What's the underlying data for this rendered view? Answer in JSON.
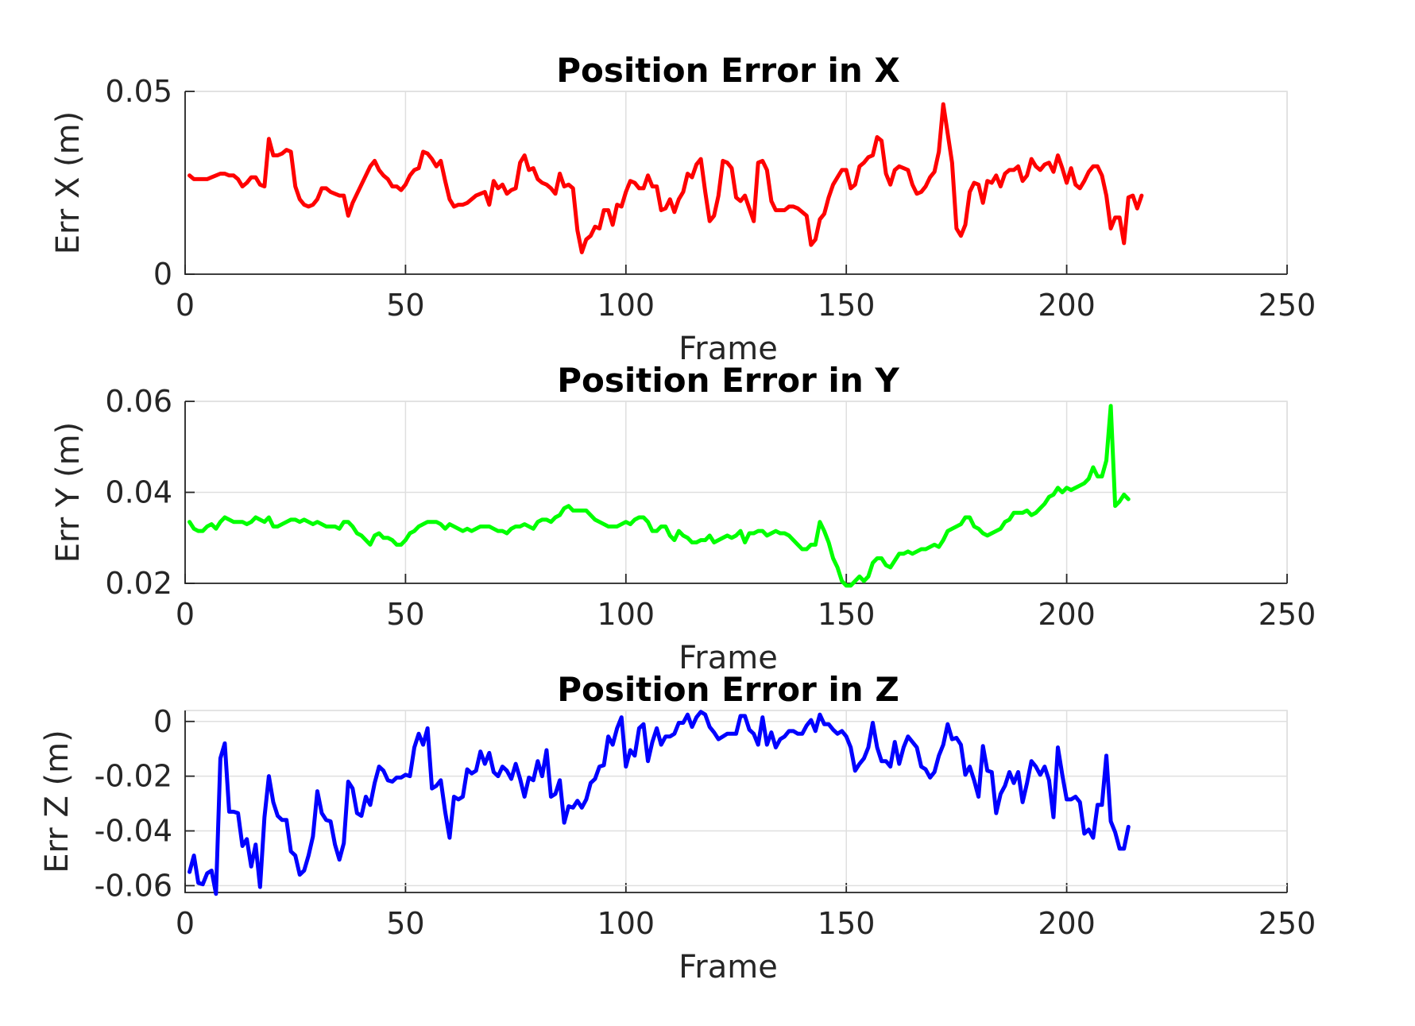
{
  "chart_data": [
    {
      "type": "line",
      "title": "Position Error in X",
      "xlabel": "Frame",
      "ylabel": "Err X (m)",
      "xlim": [
        0,
        250
      ],
      "ylim": [
        0,
        0.05
      ],
      "xticks": [
        "0",
        "50",
        "100",
        "150",
        "200",
        "250"
      ],
      "yticks": [
        "0",
        "0.05"
      ],
      "ytick_values": [
        0,
        0.05
      ],
      "grid": true,
      "color": "#ff0000",
      "series": [
        {
          "values": [
            0.027,
            0.026,
            0.026,
            0.026,
            0.026,
            0.0265,
            0.027,
            0.0275,
            0.0275,
            0.027,
            0.027,
            0.026,
            0.024,
            0.025,
            0.0265,
            0.0265,
            0.0245,
            0.024,
            0.037,
            0.0325,
            0.0325,
            0.033,
            0.034,
            0.0335,
            0.024,
            0.0205,
            0.019,
            0.0185,
            0.019,
            0.0205,
            0.0235,
            0.0235,
            0.0225,
            0.022,
            0.0215,
            0.0215,
            0.016,
            0.0195,
            0.022,
            0.0245,
            0.027,
            0.0295,
            0.031,
            0.0285,
            0.027,
            0.026,
            0.024,
            0.024,
            0.023,
            0.0245,
            0.027,
            0.0285,
            0.029,
            0.0335,
            0.033,
            0.0315,
            0.0295,
            0.031,
            0.0255,
            0.0205,
            0.0185,
            0.019,
            0.019,
            0.0195,
            0.0205,
            0.0215,
            0.022,
            0.0225,
            0.019,
            0.0255,
            0.0235,
            0.0245,
            0.022,
            0.023,
            0.0235,
            0.0305,
            0.0325,
            0.0285,
            0.029,
            0.026,
            0.025,
            0.0245,
            0.0235,
            0.022,
            0.0275,
            0.024,
            0.0245,
            0.0235,
            0.012,
            0.006,
            0.0095,
            0.0105,
            0.013,
            0.0125,
            0.0175,
            0.0175,
            0.0135,
            0.019,
            0.0185,
            0.0225,
            0.0255,
            0.025,
            0.0235,
            0.0235,
            0.027,
            0.024,
            0.024,
            0.0175,
            0.018,
            0.0205,
            0.017,
            0.0205,
            0.0225,
            0.0275,
            0.0265,
            0.03,
            0.0315,
            0.0225,
            0.0145,
            0.016,
            0.0215,
            0.031,
            0.0305,
            0.029,
            0.021,
            0.02,
            0.0215,
            0.018,
            0.0145,
            0.0305,
            0.031,
            0.0285,
            0.02,
            0.0175,
            0.0175,
            0.0175,
            0.0185,
            0.0185,
            0.018,
            0.017,
            0.016,
            0.008,
            0.0095,
            0.015,
            0.0165,
            0.021,
            0.0245,
            0.0265,
            0.0285,
            0.0285,
            0.0235,
            0.0245,
            0.0295,
            0.0305,
            0.032,
            0.0325,
            0.0375,
            0.0365,
            0.0275,
            0.0245,
            0.0285,
            0.0295,
            0.029,
            0.0285,
            0.0245,
            0.022,
            0.0225,
            0.024,
            0.0265,
            0.028,
            0.0335,
            0.0465,
            0.0385,
            0.0305,
            0.0125,
            0.0105,
            0.0135,
            0.0225,
            0.025,
            0.0245,
            0.0195,
            0.0255,
            0.025,
            0.027,
            0.024,
            0.0275,
            0.0285,
            0.0285,
            0.0295,
            0.0255,
            0.027,
            0.0315,
            0.0295,
            0.0285,
            0.03,
            0.0305,
            0.028,
            0.0325,
            0.029,
            0.025,
            0.029,
            0.0245,
            0.0235,
            0.0255,
            0.028,
            0.0295,
            0.0295,
            0.027,
            0.0215,
            0.0125,
            0.0155,
            0.0155,
            0.0085,
            0.021,
            0.0215,
            0.018,
            0.0215
          ]
        }
      ]
    },
    {
      "type": "line",
      "title": "Position Error in Y",
      "xlabel": "Frame",
      "ylabel": "Err Y (m)",
      "xlim": [
        0,
        250
      ],
      "ylim": [
        0.02,
        0.06
      ],
      "xticks": [
        "0",
        "50",
        "100",
        "150",
        "200",
        "250"
      ],
      "yticks": [
        "0.02",
        "0.04",
        "0.06"
      ],
      "ytick_values": [
        0.02,
        0.04,
        0.06
      ],
      "grid": true,
      "color": "#00ff00",
      "series": [
        {
          "values": [
            0.0335,
            0.032,
            0.0315,
            0.0315,
            0.0325,
            0.033,
            0.032,
            0.0335,
            0.0345,
            0.034,
            0.0335,
            0.0335,
            0.0335,
            0.033,
            0.0335,
            0.0345,
            0.034,
            0.0335,
            0.0345,
            0.0325,
            0.0325,
            0.033,
            0.0335,
            0.034,
            0.034,
            0.0335,
            0.034,
            0.0335,
            0.033,
            0.0335,
            0.033,
            0.0325,
            0.0325,
            0.0325,
            0.032,
            0.0335,
            0.0335,
            0.0325,
            0.031,
            0.0305,
            0.0295,
            0.0285,
            0.0305,
            0.031,
            0.03,
            0.03,
            0.0295,
            0.0285,
            0.0285,
            0.0295,
            0.031,
            0.0315,
            0.0325,
            0.033,
            0.0335,
            0.0335,
            0.0335,
            0.033,
            0.032,
            0.033,
            0.0325,
            0.032,
            0.0315,
            0.032,
            0.0315,
            0.032,
            0.0325,
            0.0325,
            0.0325,
            0.032,
            0.0315,
            0.0315,
            0.031,
            0.032,
            0.0325,
            0.0325,
            0.033,
            0.0325,
            0.032,
            0.0335,
            0.034,
            0.034,
            0.0335,
            0.0345,
            0.035,
            0.0365,
            0.037,
            0.036,
            0.036,
            0.036,
            0.036,
            0.035,
            0.034,
            0.0335,
            0.033,
            0.0325,
            0.0325,
            0.0325,
            0.033,
            0.0335,
            0.033,
            0.034,
            0.0345,
            0.0345,
            0.0335,
            0.0315,
            0.0315,
            0.0325,
            0.0325,
            0.0305,
            0.0295,
            0.0315,
            0.0305,
            0.03,
            0.029,
            0.029,
            0.0295,
            0.0295,
            0.0305,
            0.029,
            0.0295,
            0.03,
            0.0305,
            0.03,
            0.0305,
            0.0315,
            0.029,
            0.031,
            0.031,
            0.0315,
            0.0315,
            0.0305,
            0.031,
            0.0315,
            0.031,
            0.031,
            0.0305,
            0.0295,
            0.0285,
            0.0275,
            0.0275,
            0.0285,
            0.0285,
            0.0335,
            0.0315,
            0.029,
            0.0255,
            0.0235,
            0.0205,
            0.0195,
            0.0195,
            0.0205,
            0.0215,
            0.0205,
            0.0215,
            0.0245,
            0.0255,
            0.0255,
            0.024,
            0.0235,
            0.025,
            0.0265,
            0.0265,
            0.027,
            0.0265,
            0.027,
            0.0275,
            0.0275,
            0.028,
            0.0285,
            0.028,
            0.0295,
            0.0315,
            0.032,
            0.0325,
            0.033,
            0.0345,
            0.0345,
            0.0325,
            0.032,
            0.031,
            0.0305,
            0.031,
            0.0315,
            0.032,
            0.0335,
            0.034,
            0.0355,
            0.0355,
            0.0355,
            0.036,
            0.035,
            0.0355,
            0.0365,
            0.0375,
            0.039,
            0.0395,
            0.041,
            0.04,
            0.041,
            0.0405,
            0.041,
            0.0415,
            0.042,
            0.043,
            0.0455,
            0.0435,
            0.0435,
            0.047,
            0.059,
            0.037,
            0.038,
            0.0395,
            0.0385
          ]
        }
      ]
    },
    {
      "type": "line",
      "title": "Position Error in Z",
      "xlabel": "Frame",
      "ylabel": "Err Z (m)",
      "xlim": [
        0,
        250
      ],
      "ylim": [
        -0.0625,
        0.004
      ],
      "xticks": [
        "0",
        "50",
        "100",
        "150",
        "200",
        "250"
      ],
      "yticks": [
        "-0.06",
        "-0.04",
        "-0.02",
        "0"
      ],
      "ytick_values": [
        -0.06,
        -0.04,
        -0.02,
        0
      ],
      "grid": true,
      "color": "#0000ff",
      "series": [
        {
          "values": [
            -0.055,
            -0.049,
            -0.059,
            -0.0595,
            -0.0555,
            -0.0545,
            -0.063,
            -0.0135,
            -0.008,
            -0.033,
            -0.033,
            -0.0335,
            -0.0455,
            -0.043,
            -0.053,
            -0.045,
            -0.0605,
            -0.035,
            -0.02,
            -0.0295,
            -0.0345,
            -0.036,
            -0.036,
            -0.0475,
            -0.049,
            -0.056,
            -0.0545,
            -0.049,
            -0.042,
            -0.0255,
            -0.0335,
            -0.036,
            -0.0365,
            -0.045,
            -0.0505,
            -0.0445,
            -0.022,
            -0.0245,
            -0.0335,
            -0.0345,
            -0.0275,
            -0.0305,
            -0.0225,
            -0.0165,
            -0.018,
            -0.0215,
            -0.022,
            -0.0205,
            -0.0205,
            -0.0195,
            -0.02,
            -0.0095,
            -0.0045,
            -0.0085,
            -0.0025,
            -0.0245,
            -0.0235,
            -0.0215,
            -0.033,
            -0.0425,
            -0.0275,
            -0.0285,
            -0.0275,
            -0.0175,
            -0.019,
            -0.018,
            -0.011,
            -0.0155,
            -0.0115,
            -0.0185,
            -0.02,
            -0.0165,
            -0.018,
            -0.021,
            -0.0155,
            -0.021,
            -0.0275,
            -0.0205,
            -0.0215,
            -0.0145,
            -0.02,
            -0.0105,
            -0.0275,
            -0.0265,
            -0.0215,
            -0.037,
            -0.031,
            -0.0315,
            -0.029,
            -0.0315,
            -0.0285,
            -0.0225,
            -0.021,
            -0.0165,
            -0.016,
            -0.0055,
            -0.0085,
            -0.0025,
            0.0015,
            -0.0165,
            -0.0105,
            -0.0125,
            -0.0025,
            -0.001,
            -0.0145,
            -0.0075,
            -0.0025,
            -0.0085,
            -0.0055,
            -0.0055,
            -0.0045,
            -0.0005,
            -0.0005,
            0.0025,
            -0.002,
            0.0015,
            0.0035,
            0.0025,
            -0.002,
            -0.004,
            -0.0065,
            -0.0055,
            -0.0045,
            -0.0045,
            -0.0045,
            0.002,
            0.002,
            -0.003,
            -0.0045,
            -0.0085,
            0.0015,
            -0.0085,
            -0.004,
            -0.0095,
            -0.0065,
            -0.0055,
            -0.0035,
            -0.0035,
            -0.0045,
            -0.0045,
            -0.0015,
            0.0005,
            -0.0035,
            0.0025,
            -0.001,
            -0.001,
            -0.003,
            -0.0045,
            -0.0035,
            -0.0055,
            -0.0095,
            -0.018,
            -0.0155,
            -0.0135,
            -0.0095,
            -0.0005,
            -0.0095,
            -0.0145,
            -0.0145,
            -0.0165,
            -0.0075,
            -0.0155,
            -0.0095,
            -0.0055,
            -0.0075,
            -0.0095,
            -0.0165,
            -0.0175,
            -0.0205,
            -0.0185,
            -0.0125,
            -0.0085,
            -0.001,
            -0.0065,
            -0.006,
            -0.0085,
            -0.0195,
            -0.0165,
            -0.0215,
            -0.0275,
            -0.009,
            -0.018,
            -0.0185,
            -0.0335,
            -0.0265,
            -0.0235,
            -0.0185,
            -0.0225,
            -0.0185,
            -0.0295,
            -0.0225,
            -0.0145,
            -0.0165,
            -0.0195,
            -0.0165,
            -0.0215,
            -0.035,
            -0.0095,
            -0.0195,
            -0.0285,
            -0.0285,
            -0.0275,
            -0.0295,
            -0.041,
            -0.0395,
            -0.0425,
            -0.0305,
            -0.0305,
            -0.0125,
            -0.0365,
            -0.0405,
            -0.0465,
            -0.0465,
            -0.0385
          ]
        }
      ]
    }
  ]
}
